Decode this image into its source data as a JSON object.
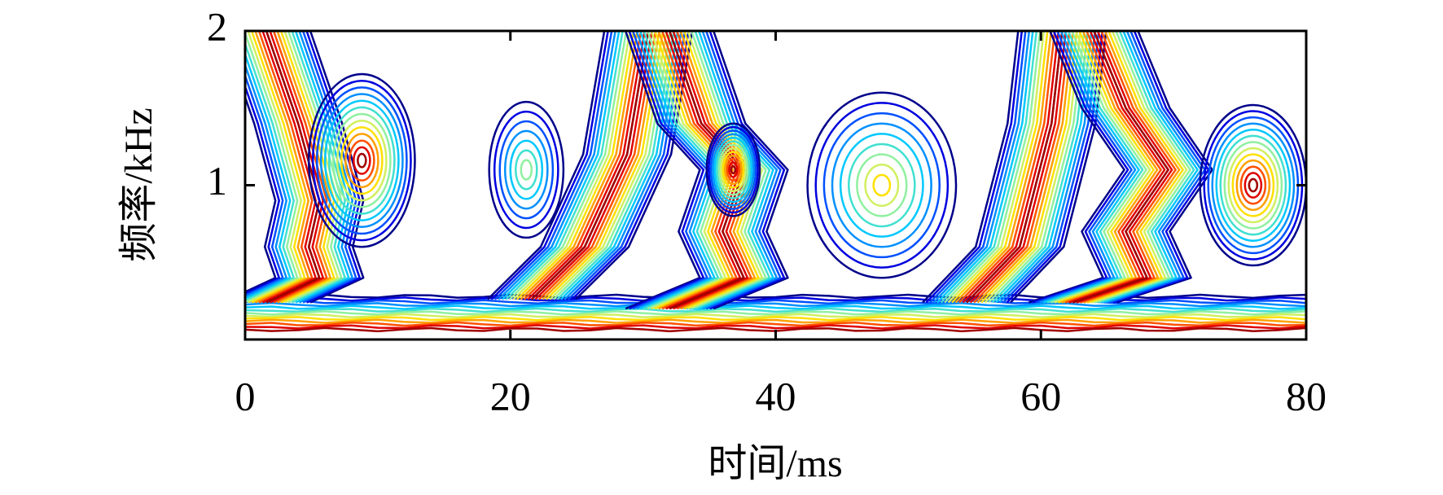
{
  "chart_data": {
    "type": "contour",
    "xlabel": "时间/ms",
    "ylabel": "频率/kHz",
    "xlim": [
      0,
      80
    ],
    "ylim": [
      0,
      2
    ],
    "xticks": [
      0,
      20,
      40,
      60,
      80
    ],
    "yticks": [
      1,
      2
    ],
    "colors": [
      "#00008b",
      "#0000e0",
      "#0050ff",
      "#0090ff",
      "#00c8ff",
      "#40e0d0",
      "#90f0a0",
      "#d0f060",
      "#ffe000",
      "#ffa000",
      "#ff5000",
      "#e00000",
      "#a00000"
    ]
  }
}
